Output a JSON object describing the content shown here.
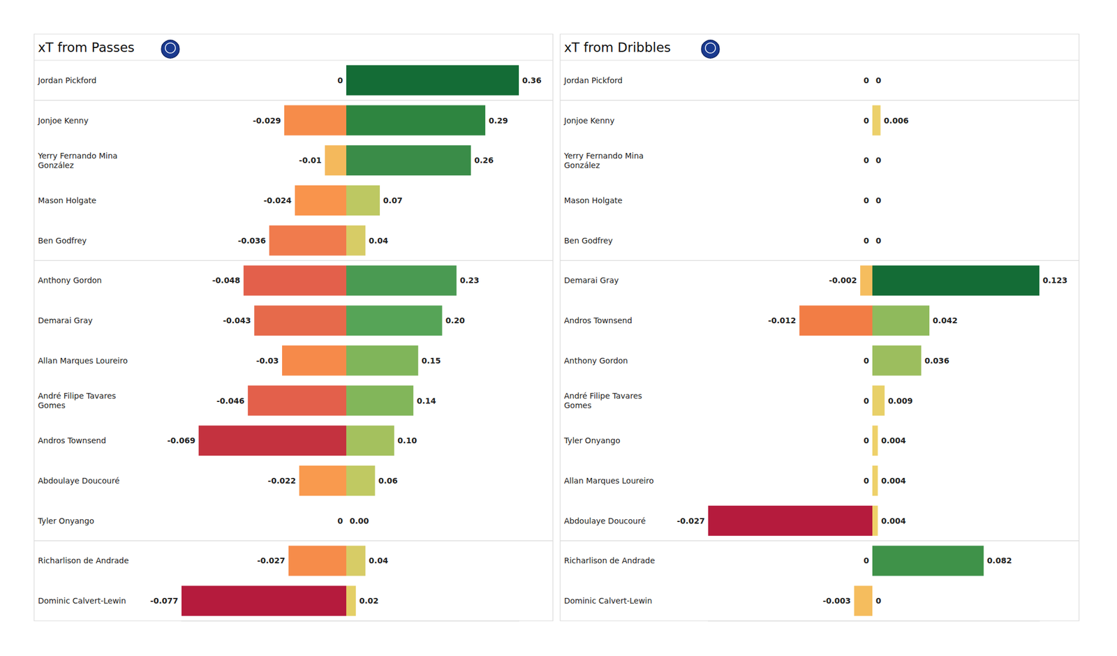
{
  "chart_data": [
    {
      "type": "bar",
      "title": "xT from Passes",
      "orientation": "horizontal",
      "categories": [
        "Jordan Pickford",
        "Jonjoe Kenny",
        "Yerry Fernando Mina González",
        "Mason Holgate",
        "Ben Godfrey",
        "Anthony Gordon",
        "Demarai Gray",
        "Allan Marques Loureiro",
        "André Filipe Tavares Gomes",
        "Andros Townsend",
        "Abdoulaye Doucouré",
        "Tyler Onyango",
        "Richarlison de Andrade",
        "Dominic Calvert-Lewin"
      ],
      "series": [
        {
          "values": [
            0,
            -0.029,
            -0.01,
            -0.024,
            -0.036,
            -0.048,
            -0.043,
            -0.03,
            -0.046,
            -0.069,
            -0.022,
            0,
            -0.027,
            -0.077
          ],
          "colors": [
            "#f0d36a",
            "#f68c4a",
            "#f4b95c",
            "#f9944c",
            "#f07b4d",
            "#e3604b",
            "#e66a4b",
            "#f68a4a",
            "#e3604b",
            "#c4323f",
            "#f99a4e",
            "#f0d36a",
            "#f68c4a",
            "#b51b3d"
          ],
          "xlim": [
            -0.077,
            0
          ]
        },
        {
          "values": [
            0.36,
            0.29,
            0.26,
            0.07,
            0.04,
            0.23,
            0.2,
            0.15,
            0.14,
            0.1,
            0.06,
            0,
            0.04,
            0.02
          ],
          "value_labels": [
            "0.36",
            "0.29",
            "0.26",
            "0.07",
            "0.04",
            "0.23",
            "0.20",
            "0.15",
            "0.14",
            "0.10",
            "0.06",
            "0.00",
            "0.04",
            "0.02"
          ],
          "colors": [
            "#146c36",
            "#2e8540",
            "#3a8c48",
            "#bdc862",
            "#d7cc66",
            "#4a9a52",
            "#56a457",
            "#80b55a",
            "#82b65a",
            "#a4c15e",
            "#c0c962",
            "#f0d36a",
            "#d7cc66",
            "#e4cf66"
          ],
          "xlim": [
            0,
            0.36
          ]
        }
      ],
      "data_labels": true,
      "tick_labels": "y",
      "grid": false
    },
    {
      "type": "bar",
      "title": "xT from Dribbles",
      "orientation": "horizontal",
      "categories": [
        "Jordan Pickford",
        "Jonjoe Kenny",
        "Yerry Fernando Mina González",
        "Mason Holgate",
        "Ben Godfrey",
        "Demarai Gray",
        "Andros Townsend",
        "Anthony Gordon",
        "André Filipe Tavares Gomes",
        "Tyler Onyango",
        "Allan Marques Loureiro",
        "Abdoulaye Doucouré",
        "Richarlison de Andrade",
        "Dominic Calvert-Lewin"
      ],
      "series": [
        {
          "values": [
            0,
            0,
            0,
            0,
            0,
            -0.002,
            -0.012,
            0,
            0,
            0,
            0,
            -0.027,
            0,
            -0.003
          ],
          "colors": [
            "#f0d36a",
            "#f0d36a",
            "#f0d36a",
            "#f0d36a",
            "#f0d36a",
            "#f5bd5e",
            "#f27d45",
            "#f0d36a",
            "#f0d36a",
            "#f0d36a",
            "#f0d36a",
            "#b51b3d",
            "#f0d36a",
            "#f5bd5e"
          ],
          "xlim": [
            -0.027,
            0
          ]
        },
        {
          "values": [
            0,
            0.006,
            0,
            0,
            0,
            0.123,
            0.042,
            0.036,
            0.009,
            0.004,
            0.004,
            0.004,
            0.082,
            0
          ],
          "colors": [
            "#f0d36a",
            "#ecd06a",
            "#f0d36a",
            "#f0d36a",
            "#f0d36a",
            "#146c36",
            "#8fba5c",
            "#9cbe5e",
            "#e8d068",
            "#eed16a",
            "#eed16a",
            "#eed16a",
            "#3f9249",
            "#f0d36a"
          ],
          "xlim": [
            0,
            0.123
          ]
        }
      ],
      "data_labels": true,
      "tick_labels": "y",
      "grid": false
    }
  ]
}
